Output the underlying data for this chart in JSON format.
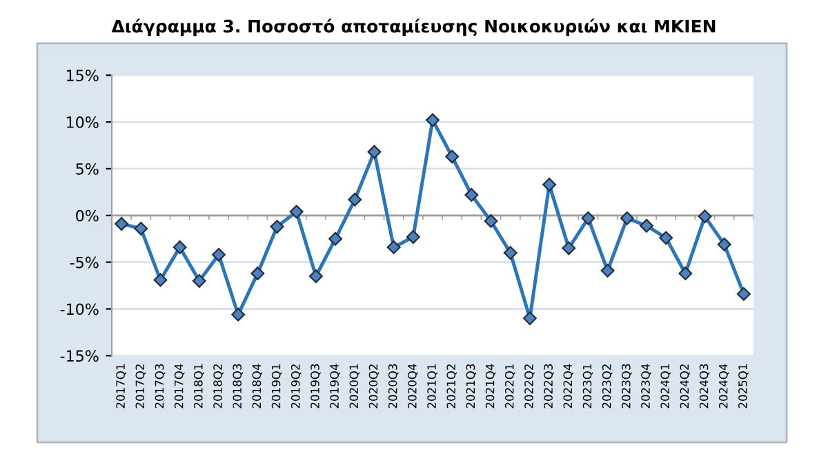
{
  "chart_data": {
    "type": "line",
    "title": "Διάγραμμα 3. Ποσοστό αποταμίευσης Νοικοκυριών και ΜΚΙΕΝ",
    "categories": [
      "2017Q1",
      "2017Q2",
      "2017Q3",
      "2017Q4",
      "2018Q1",
      "2018Q2",
      "2018Q3",
      "2018Q4",
      "2019Q1",
      "2019Q2",
      "2019Q3",
      "2019Q4",
      "2020Q1",
      "2020Q2",
      "2020Q3",
      "2020Q4",
      "2021Q1",
      "2021Q2",
      "2021Q3",
      "2021Q4",
      "2022Q1",
      "2022Q2",
      "2022Q3",
      "2022Q4",
      "2023Q1",
      "2023Q2",
      "2023Q3",
      "2023Q4",
      "2024Q1",
      "2024Q2",
      "2024Q3",
      "2024Q4",
      "2025Q1"
    ],
    "series": [
      {
        "color": "#2e75b6",
        "values": [
          -0.9,
          -1.4,
          -6.9,
          -3.4,
          -7.0,
          -4.2,
          -10.6,
          -6.2,
          -1.2,
          0.4,
          -6.5,
          -2.5,
          1.7,
          6.8,
          -3.4,
          -2.3,
          10.2,
          6.3,
          2.2,
          -0.6,
          -4.0,
          -11.0,
          3.3,
          -3.5,
          -0.3,
          -5.9,
          -0.3,
          -1.1,
          -2.4,
          -6.2,
          -0.1,
          -3.1,
          -8.4
        ]
      }
    ],
    "ylim": [
      -15,
      15
    ],
    "yticks": [
      {
        "value": 15,
        "label": "15%"
      },
      {
        "value": 10,
        "label": "10%"
      },
      {
        "value": 5,
        "label": "5%"
      },
      {
        "value": 0,
        "label": "0%"
      },
      {
        "value": -5,
        "label": "-5%"
      },
      {
        "value": -10,
        "label": "-10%"
      },
      {
        "value": -15,
        "label": "-15%"
      }
    ],
    "grid": "y",
    "marker": "diamond",
    "line_style": "solid",
    "legend": false
  }
}
